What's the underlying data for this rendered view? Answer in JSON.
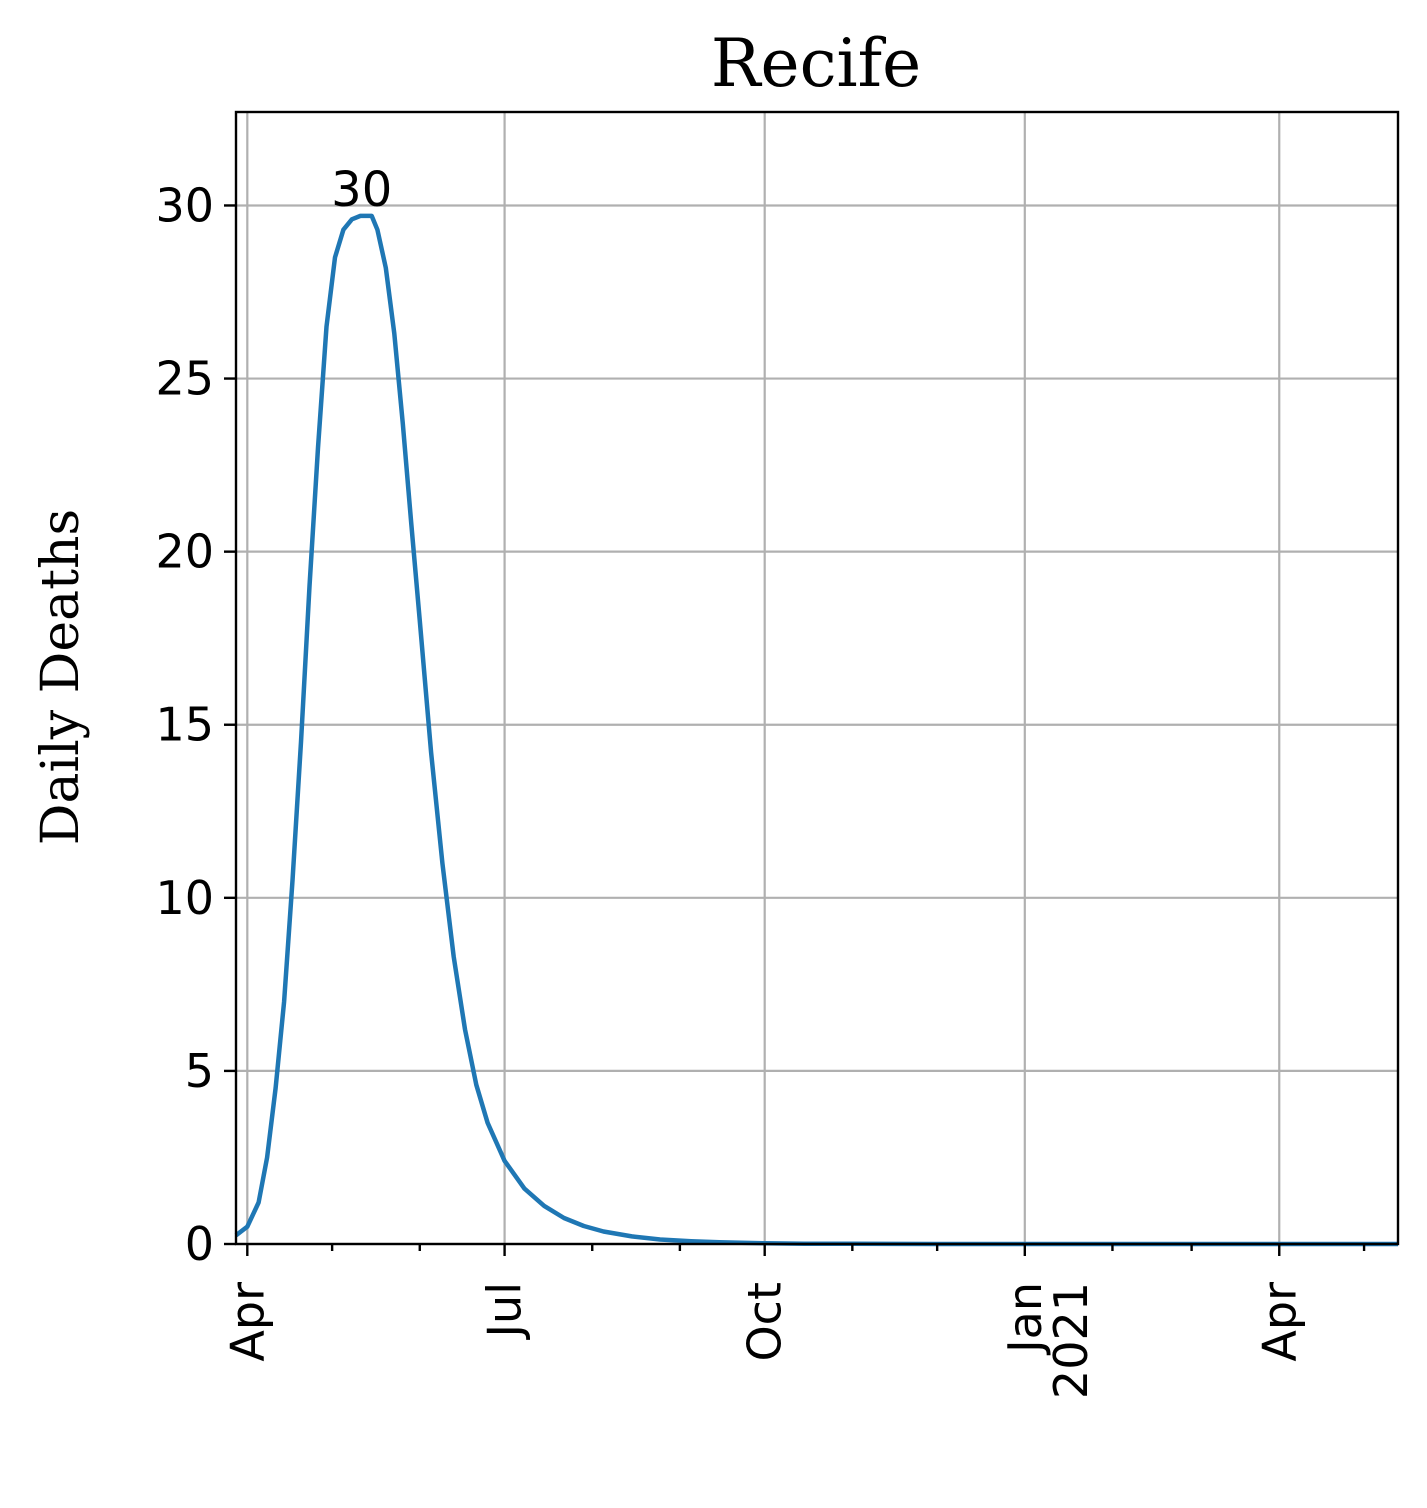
{
  "chart_data": {
    "type": "line",
    "title": "Recife",
    "ylabel": "Daily Deaths",
    "xlabel": "",
    "ylim": [
      0,
      32.7
    ],
    "xlim": [
      "2020-03-28",
      "2021-05-13"
    ],
    "grid": true,
    "y_ticks": [
      0,
      5,
      10,
      15,
      20,
      25,
      30
    ],
    "x_ticks": [
      {
        "date": "2020-04-01",
        "label": "Apr"
      },
      {
        "date": "2020-07-01",
        "label": "Jul"
      },
      {
        "date": "2020-10-01",
        "label": "Oct"
      },
      {
        "date": "2021-01-01",
        "label": "Jan",
        "label2": "2021"
      },
      {
        "date": "2021-04-01",
        "label": "Apr"
      }
    ],
    "x_minor_ticks": [
      "2020-05-01",
      "2020-06-01",
      "2020-08-01",
      "2020-09-01",
      "2020-11-01",
      "2020-12-01",
      "2021-02-01",
      "2021-03-01",
      "2021-05-01"
    ],
    "annotation": {
      "text": "30",
      "date": "2020-05-15",
      "value": 29.7
    },
    "series": [
      {
        "color": "#1f77b4",
        "x": [
          "2020-03-28",
          "2020-04-01",
          "2020-04-05",
          "2020-04-08",
          "2020-04-11",
          "2020-04-14",
          "2020-04-17",
          "2020-04-20",
          "2020-04-23",
          "2020-04-26",
          "2020-04-29",
          "2020-05-02",
          "2020-05-05",
          "2020-05-08",
          "2020-05-11",
          "2020-05-14",
          "2020-05-15",
          "2020-05-17",
          "2020-05-20",
          "2020-05-23",
          "2020-05-26",
          "2020-05-29",
          "2020-06-01",
          "2020-06-05",
          "2020-06-09",
          "2020-06-13",
          "2020-06-17",
          "2020-06-21",
          "2020-06-25",
          "2020-07-01",
          "2020-07-08",
          "2020-07-15",
          "2020-07-22",
          "2020-07-29",
          "2020-08-05",
          "2020-08-15",
          "2020-08-25",
          "2020-09-05",
          "2020-09-15",
          "2020-10-01",
          "2020-10-15",
          "2020-11-01",
          "2020-12-01",
          "2021-01-01",
          "2021-02-01",
          "2021-03-01",
          "2021-04-01",
          "2021-05-13"
        ],
        "y": [
          0.25,
          0.5,
          1.2,
          2.5,
          4.5,
          7.0,
          10.5,
          14.5,
          19.0,
          23.0,
          26.5,
          28.5,
          29.3,
          29.6,
          29.7,
          29.7,
          29.7,
          29.3,
          28.2,
          26.3,
          23.7,
          20.8,
          18.0,
          14.2,
          11.0,
          8.3,
          6.2,
          4.6,
          3.5,
          2.4,
          1.6,
          1.1,
          0.75,
          0.52,
          0.36,
          0.22,
          0.13,
          0.08,
          0.05,
          0.02,
          0.01,
          0.005,
          0.0,
          0.0,
          0.0,
          0.0,
          0.0,
          0.0
        ]
      }
    ]
  }
}
